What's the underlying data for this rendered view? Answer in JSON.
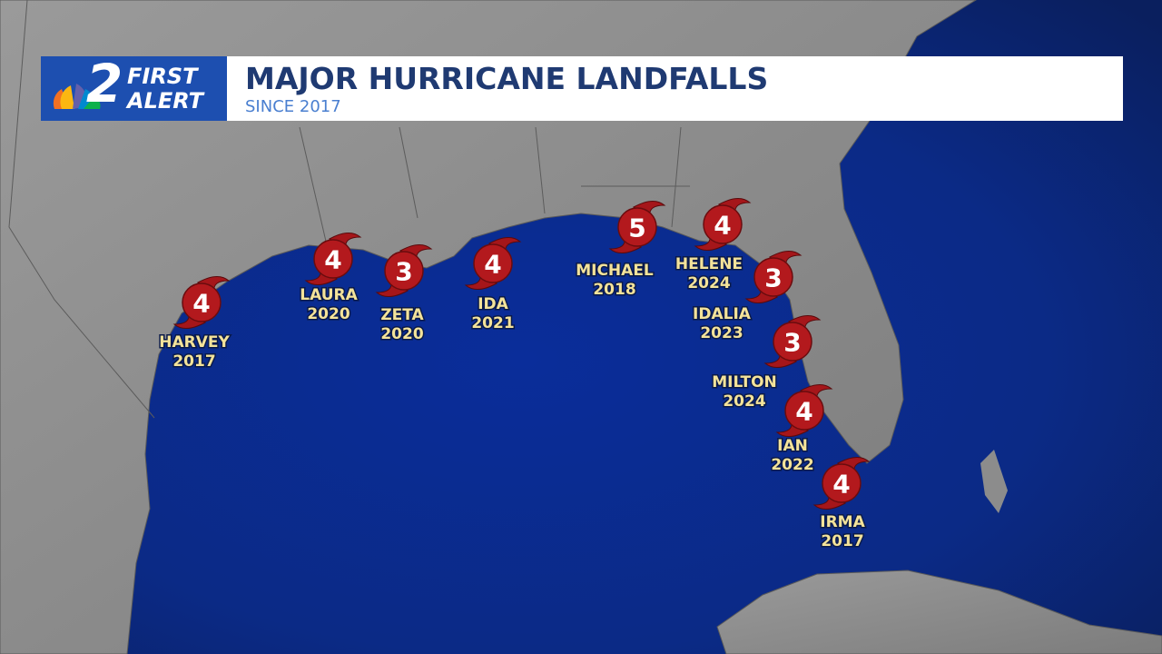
{
  "header": {
    "logo": {
      "number": "2",
      "line1": "FIRST",
      "line2": "ALERT"
    },
    "title": "MAJOR HURRICANE LANDFALLS",
    "subtitle": "SINCE 2017"
  },
  "hurricanes": [
    {
      "category": "4",
      "name": "HARVEY",
      "year": "2017"
    },
    {
      "category": "4",
      "name": "LAURA",
      "year": "2020"
    },
    {
      "category": "3",
      "name": "ZETA",
      "year": "2020"
    },
    {
      "category": "4",
      "name": "IDA",
      "year": "2021"
    },
    {
      "category": "5",
      "name": "MICHAEL",
      "year": "2018"
    },
    {
      "category": "4",
      "name": "HELENE",
      "year": "2024"
    },
    {
      "category": "3",
      "name": "IDALIA",
      "year": "2023"
    },
    {
      "category": "3",
      "name": "MILTON",
      "year": "2024"
    },
    {
      "category": "4",
      "name": "IAN",
      "year": "2022"
    },
    {
      "category": "4",
      "name": "IRMA",
      "year": "2017"
    }
  ]
}
